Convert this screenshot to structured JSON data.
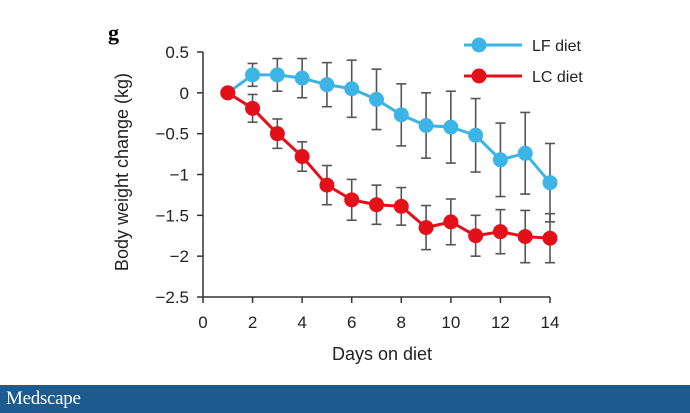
{
  "panel_label": "g",
  "brand": {
    "logo_text": "Medscape"
  },
  "colors": {
    "lf": "#3cb4e5",
    "lc": "#e3101a",
    "error_bar": "#555555",
    "axis": "#333333",
    "footer": "#1d5b8f"
  },
  "chart_data": {
    "type": "line",
    "title": "",
    "xlabel": "Days on diet",
    "ylabel": "Body weight change (kg)",
    "xlim": [
      0,
      14
    ],
    "ylim": [
      -2.5,
      0.5
    ],
    "xticks": [
      0,
      2,
      4,
      6,
      8,
      10,
      12,
      14
    ],
    "xtick_labels": [
      "0",
      "2",
      "4",
      "6",
      "8",
      "10",
      "12",
      "14"
    ],
    "yticks": [
      0.5,
      0,
      -0.5,
      -1,
      -1.5,
      -2,
      -2.5
    ],
    "ytick_labels": [
      "0.5",
      "0",
      "−0.5",
      "−1",
      "−1.5",
      "−2",
      "−2.5"
    ],
    "grid": false,
    "legend_position": "top-right",
    "x": [
      1,
      2,
      3,
      4,
      5,
      6,
      7,
      8,
      9,
      10,
      11,
      12,
      13,
      14
    ],
    "series": [
      {
        "name": "LF diet",
        "color": "#3cb4e5",
        "values": [
          0,
          0.22,
          0.22,
          0.18,
          0.1,
          0.05,
          -0.08,
          -0.27,
          -0.4,
          -0.42,
          -0.52,
          -0.82,
          -0.74,
          -1.1
        ],
        "errors": [
          0,
          0.14,
          0.2,
          0.24,
          0.27,
          0.35,
          0.37,
          0.38,
          0.4,
          0.44,
          0.45,
          0.45,
          0.5,
          0.48
        ]
      },
      {
        "name": "LC diet",
        "color": "#e3101a",
        "values": [
          0,
          -0.19,
          -0.5,
          -0.78,
          -1.13,
          -1.31,
          -1.37,
          -1.39,
          -1.65,
          -1.58,
          -1.75,
          -1.7,
          -1.76,
          -1.78
        ],
        "errors": [
          0,
          0.17,
          0.18,
          0.18,
          0.24,
          0.25,
          0.24,
          0.23,
          0.27,
          0.28,
          0.25,
          0.27,
          0.32,
          0.3
        ]
      }
    ]
  }
}
